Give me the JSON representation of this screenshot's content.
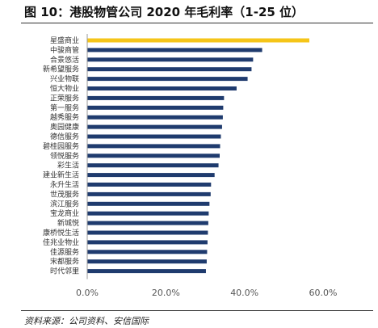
{
  "figure": {
    "title": "图 10：港股物管公司 2020 年毛利率（1-25 位）",
    "source": "资料来源：公司资料、安信国际"
  },
  "colors": {
    "highlight": "#f5c518",
    "bar": "#1f3b6e",
    "axis": "#999999"
  },
  "chart_data": {
    "type": "bar",
    "orientation": "horizontal",
    "categories": [
      "星盛商业",
      "中骏商管",
      "合景悠活",
      "新希望服务",
      "兴业物联",
      "恒大物业",
      "正荣服务",
      "第一服务",
      "越秀服务",
      "奥园健康",
      "德信服务",
      "碧桂园服务",
      "领悦服务",
      "彩生活",
      "建业新生活",
      "永升生活",
      "世茂服务",
      "滨江服务",
      "宝龙商业",
      "新城悦",
      "康桥悦生活",
      "佳兆业物业",
      "佳源服务",
      "宋都服务",
      "时代邻里"
    ],
    "values": [
      56.5,
      44.5,
      42.2,
      41.8,
      40.8,
      38.0,
      34.8,
      34.6,
      34.5,
      34.3,
      34.0,
      33.8,
      33.7,
      33.4,
      32.4,
      31.5,
      31.4,
      31.1,
      30.9,
      30.8,
      30.7,
      30.6,
      30.5,
      30.4,
      30.2
    ],
    "highlight_index": 0,
    "xlim": [
      0,
      60
    ],
    "xticks": [
      0,
      20,
      40,
      60
    ],
    "xtick_labels": [
      "0.0%",
      "20.0%",
      "40.0%",
      "60.0%"
    ],
    "grid": false,
    "legend": "none"
  }
}
